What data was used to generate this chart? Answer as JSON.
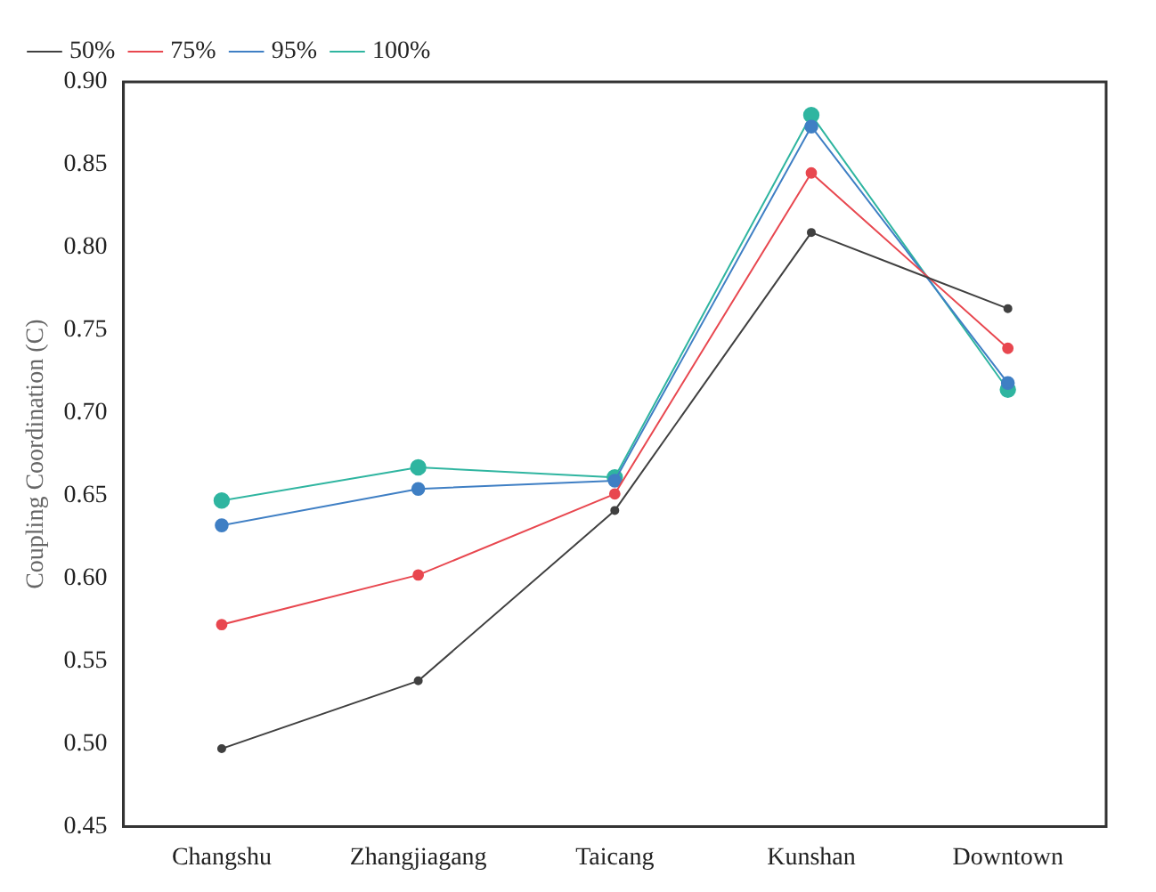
{
  "chart_data": {
    "type": "line",
    "ylabel": "Coupling Coordination (C)",
    "categories": [
      "Changshu",
      "Zhangjiagang",
      "Taicang",
      "Kunshan",
      "Downtown"
    ],
    "series": [
      {
        "name": "50%",
        "color": "#404040",
        "values": [
          0.497,
          0.538,
          0.641,
          0.809,
          0.763
        ]
      },
      {
        "name": "75%",
        "color": "#e8474f",
        "values": [
          0.572,
          0.602,
          0.651,
          0.845,
          0.739
        ]
      },
      {
        "name": "95%",
        "color": "#3f7fc4",
        "values": [
          0.632,
          0.654,
          0.659,
          0.873,
          0.718
        ]
      },
      {
        "name": "100%",
        "color": "#2fb5a0",
        "values": [
          0.647,
          0.667,
          0.661,
          0.88,
          0.714
        ]
      }
    ],
    "ylim": [
      0.45,
      0.9
    ],
    "yticks": [
      0.45,
      {
        "value": 0.5,
        "label": "0.50"
      },
      0.55,
      {
        "value": 0.6,
        "label": "0.60"
      },
      0.65,
      {
        "value": 0.7,
        "label": "0.70"
      },
      0.75,
      {
        "value": 0.8,
        "label": "0.80"
      },
      0.85,
      {
        "value": 0.9,
        "label": "0.90"
      }
    ],
    "grid": false,
    "legend": "top left",
    "marker": "circle",
    "line_style": "solid"
  }
}
